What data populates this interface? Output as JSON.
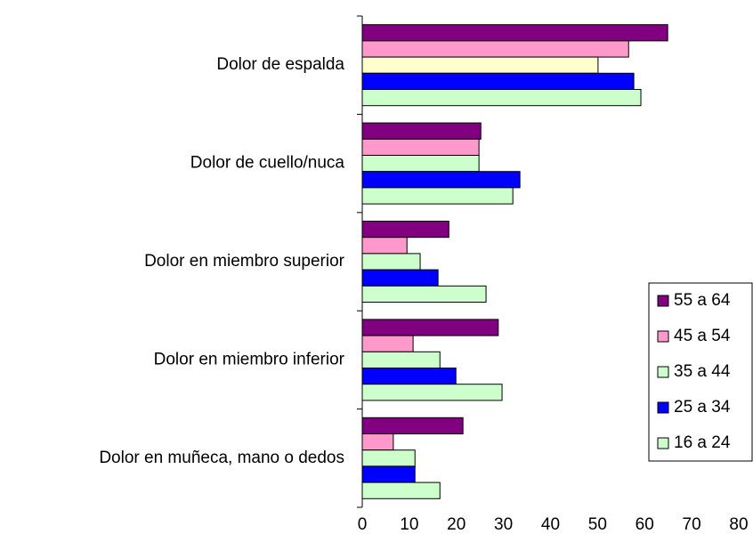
{
  "chart_data": {
    "type": "barh",
    "categories": [
      "Dolor de espalda",
      "Dolor de cuello/nuca",
      "Dolor en miembro superior",
      "Dolor en miembro inferior",
      "Dolor en muñeca, mano o dedos"
    ],
    "series": [
      {
        "name": "55 a 64",
        "color": "#800080",
        "values": [
          64.9,
          25.2,
          18.4,
          28.9,
          21.4
        ]
      },
      {
        "name": "45 a 54",
        "color": "#ff99cc",
        "values": [
          56.6,
          24.8,
          9.5,
          10.8,
          6.6
        ]
      },
      {
        "name": "35 a 44",
        "color": "#ccffcc",
        "colors": [
          "#ffffcc",
          "#ccffcc",
          "#ccffcc",
          "#ccffcc",
          "#ccffcc"
        ],
        "values": [
          50.1,
          24.8,
          12.3,
          16.5,
          11.2
        ]
      },
      {
        "name": "25 a 34",
        "color": "#0000ff",
        "values": [
          57.7,
          33.5,
          16.1,
          19.9,
          11.2
        ]
      },
      {
        "name": "16 a 24",
        "color": "#ccffcc",
        "values": [
          59.2,
          32.0,
          26.3,
          29.7,
          16.5
        ]
      }
    ],
    "xlim": [
      0,
      80
    ],
    "xticks": [
      0,
      10,
      20,
      30,
      40,
      50,
      60,
      70,
      80
    ],
    "legend": "right"
  }
}
